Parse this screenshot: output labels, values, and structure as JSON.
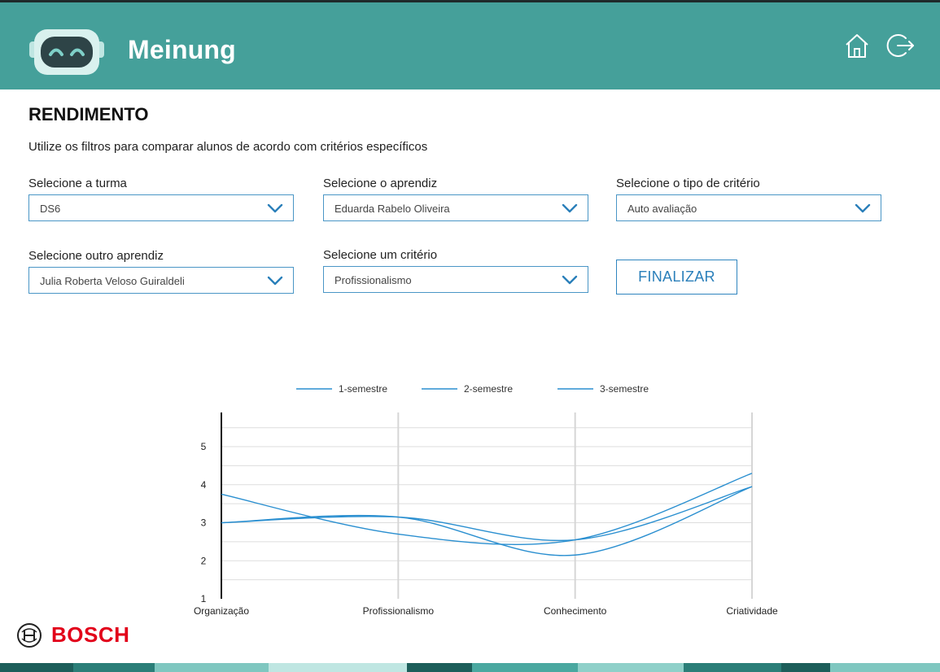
{
  "app": {
    "title": "Meinung"
  },
  "header": {
    "home_icon": "home-icon",
    "logout_icon": "logout-icon"
  },
  "page": {
    "title": "RENDIMENTO",
    "subtitle": "Utilize os filtros para comparar alunos de acordo com critérios específicos"
  },
  "filters": {
    "turma": {
      "label": "Selecione a turma",
      "value": "DS6"
    },
    "aprendiz": {
      "label": "Selecione o aprendiz",
      "value": "Eduarda Rabelo Oliveira"
    },
    "tipo_criterio": {
      "label": "Selecione o tipo de critério",
      "value": "Auto avaliação"
    },
    "outro_aprendiz": {
      "label": "Selecione outro aprendiz",
      "value": "Julia Roberta Veloso Guiraldeli"
    },
    "criterio": {
      "label": "Selecione um critério",
      "value": "Profissionalismo"
    },
    "finalize_label": "FINALIZAR"
  },
  "brand": {
    "name": "BOSCH",
    "color": "#e2001a"
  },
  "colors": {
    "header": "#45a09a",
    "accent": "#2a7fba",
    "line": "#2a8fd0"
  },
  "chart_data": {
    "type": "line",
    "categories": [
      "Organização",
      "Profissionalismo",
      "Conhecimento",
      "Criatividade"
    ],
    "series": [
      {
        "name": "1-semestre",
        "values": [
          3.0,
          3.15,
          2.15,
          3.95
        ]
      },
      {
        "name": "2-semestre",
        "values": [
          3.75,
          2.7,
          2.55,
          4.3
        ]
      },
      {
        "name": "3-semestre",
        "values": [
          3.0,
          3.15,
          2.55,
          3.95
        ]
      }
    ],
    "yticks": [
      1,
      2,
      3,
      4,
      5
    ],
    "ylim": [
      1,
      5.9
    ],
    "grid": true,
    "legend": "top"
  }
}
